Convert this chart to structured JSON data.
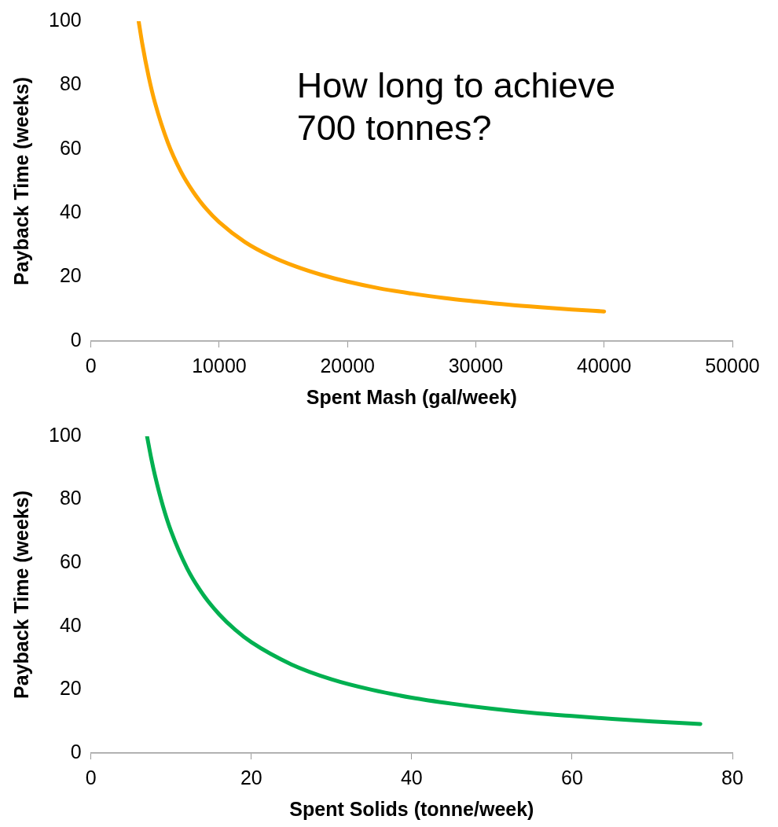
{
  "chart_data": [
    {
      "type": "line",
      "xlabel": "Spent Mash (gal/week)",
      "ylabel": "Payback Time (weeks)",
      "xlim": [
        0,
        50000
      ],
      "xticks": [
        0,
        10000,
        20000,
        30000,
        40000,
        50000
      ],
      "ylim": [
        0,
        100
      ],
      "yticks": [
        0,
        20,
        40,
        60,
        80,
        100
      ],
      "grid": false,
      "legend": false,
      "marker": "none",
      "line_style": "solid",
      "annotations": [
        "How long to achieve 700 tonnes?"
      ],
      "series": [
        {
          "color": "#ffa500",
          "x": [
            3720,
            4000,
            4500,
            5000,
            6000,
            7000,
            8000,
            9000,
            10000,
            12000,
            14000,
            16000,
            18000,
            20000,
            22500,
            25000,
            27500,
            30000,
            32500,
            35000,
            37500,
            40000
          ],
          "values": [
            100,
            93,
            82.7,
            74.4,
            62,
            53.1,
            46.5,
            41.3,
            37.2,
            31,
            26.6,
            23.3,
            20.7,
            18.6,
            16.5,
            14.9,
            13.5,
            12.4,
            11.4,
            10.6,
            9.9,
            9.3
          ]
        }
      ]
    },
    {
      "type": "line",
      "xlabel": "Spent Solids (tonne/week)",
      "ylabel": "Payback Time (weeks)",
      "xlim": [
        0,
        80
      ],
      "xticks": [
        0,
        20,
        40,
        60,
        80
      ],
      "ylim": [
        0,
        100
      ],
      "yticks": [
        0,
        20,
        40,
        60,
        80,
        100
      ],
      "grid": false,
      "legend": false,
      "marker": "none",
      "line_style": "solid",
      "series": [
        {
          "color": "#00b050",
          "x": [
            7,
            7.5,
            8,
            9,
            10,
            12,
            14,
            16,
            18,
            20,
            25,
            30,
            35,
            40,
            45,
            50,
            55,
            60,
            65,
            70,
            76
          ],
          "values": [
            100,
            93.3,
            87.5,
            77.8,
            70,
            58.3,
            50,
            43.8,
            38.9,
            35,
            28,
            23.3,
            20,
            17.5,
            15.6,
            14,
            12.7,
            11.7,
            10.8,
            10,
            9.2
          ]
        }
      ]
    }
  ]
}
